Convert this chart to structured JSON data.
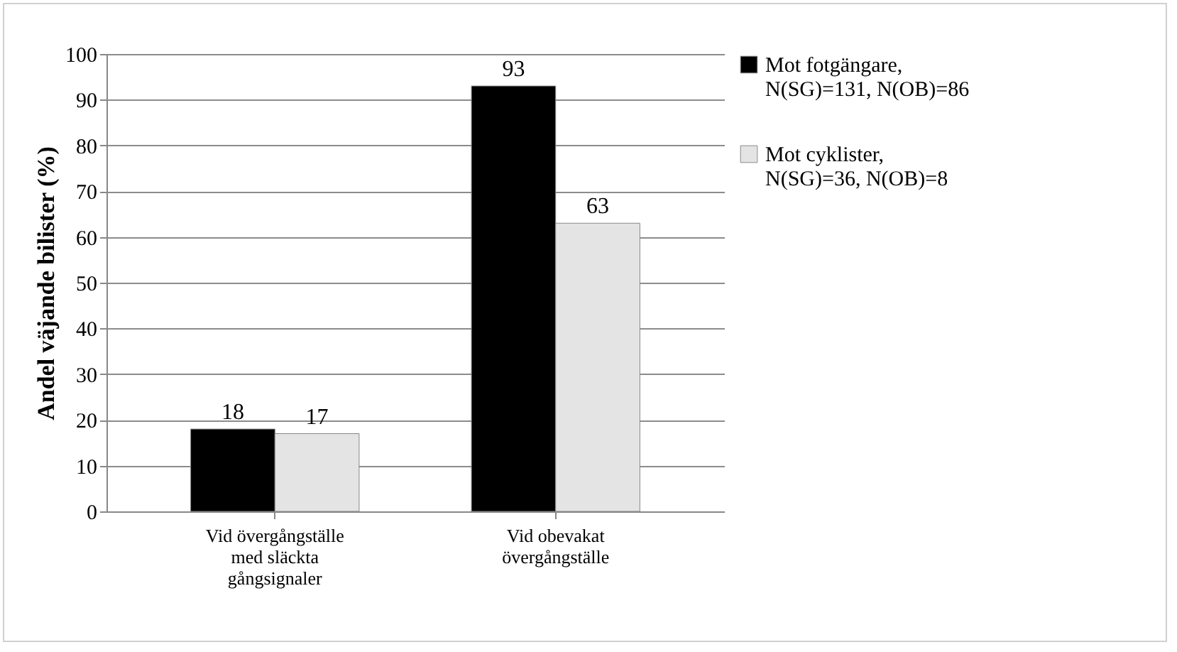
{
  "chart_data": {
    "type": "bar",
    "ylabel": "Andel väjande bilister (%)",
    "categories": [
      "Vid övergångställe\nmed släckta\ngångsignaler",
      "Vid obevakat\növergångställe"
    ],
    "series": [
      {
        "name": "Mot fotgängare,\nN(SG)=131, N(OB)=86",
        "color": "#000000",
        "values": [
          18,
          93
        ]
      },
      {
        "name": "Mot cyklister,\nN(SG)=36, N(OB)=8",
        "color": "#e4e4e4",
        "values": [
          17,
          63
        ]
      }
    ],
    "ylim": [
      0,
      100
    ],
    "yticks": [
      0,
      10,
      20,
      30,
      40,
      50,
      60,
      70,
      80,
      90,
      100
    ],
    "grid": "y",
    "legend": "right",
    "data_labels": true
  }
}
